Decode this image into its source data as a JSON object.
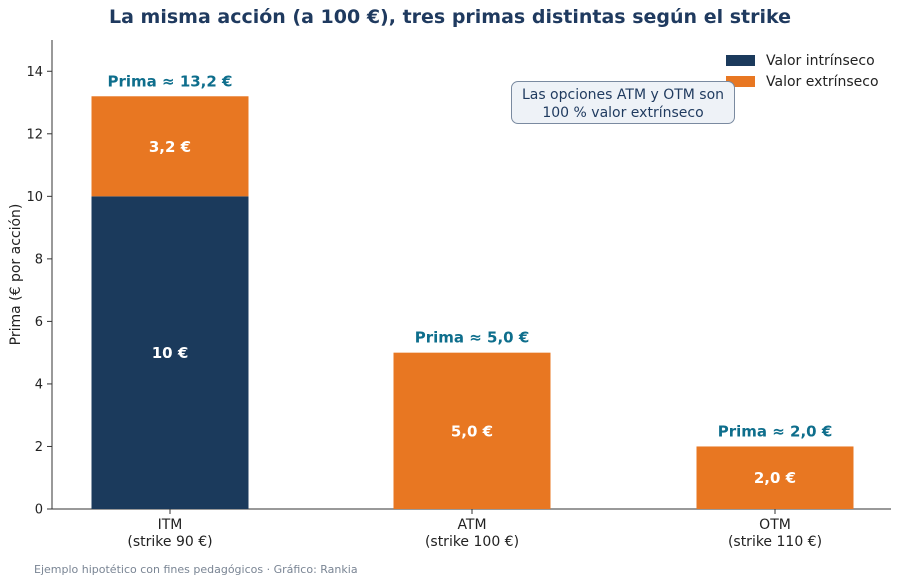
{
  "chart_data": {
    "type": "bar",
    "stacked": true,
    "title": "La misma acción (a 100 €), tres primas distintas según el strike",
    "ylabel": "Prima (€ por acción)",
    "xlabel": "",
    "ylim": [
      0,
      15
    ],
    "yticks": [
      0,
      2,
      4,
      6,
      8,
      10,
      12,
      14
    ],
    "categories": [
      {
        "name": "ITM",
        "sub": "(strike 90 €)"
      },
      {
        "name": "ATM",
        "sub": "(strike 100 €)"
      },
      {
        "name": "OTM",
        "sub": "(strike 110 €)"
      }
    ],
    "series": [
      {
        "name": "Valor intrínseco",
        "color": "#1b3a5c",
        "values": [
          10,
          0,
          0
        ],
        "labels": [
          "10 €",
          "",
          ""
        ]
      },
      {
        "name": "Valor extrínseco",
        "color": "#e87722",
        "values": [
          3.2,
          5.0,
          2.0
        ],
        "labels": [
          "3,2 €",
          "5,0 €",
          "2,0 €"
        ]
      }
    ],
    "totals": [
      "Prima ≈ 13,2 €",
      "Prima ≈ 5,0 €",
      "Prima ≈ 2,0 €"
    ],
    "total_label_color": "#0e6e8c",
    "legend_position": "top-right",
    "grid": false,
    "annotation": "Las opciones ATM y OTM son\n100 % valor extrínseco",
    "annotation_lines": [
      "Las opciones ATM y OTM son",
      "100 % valor extrínseco"
    ]
  },
  "footer": "Ejemplo hipotético con fines pedagógicos · Gráfico: Rankia"
}
